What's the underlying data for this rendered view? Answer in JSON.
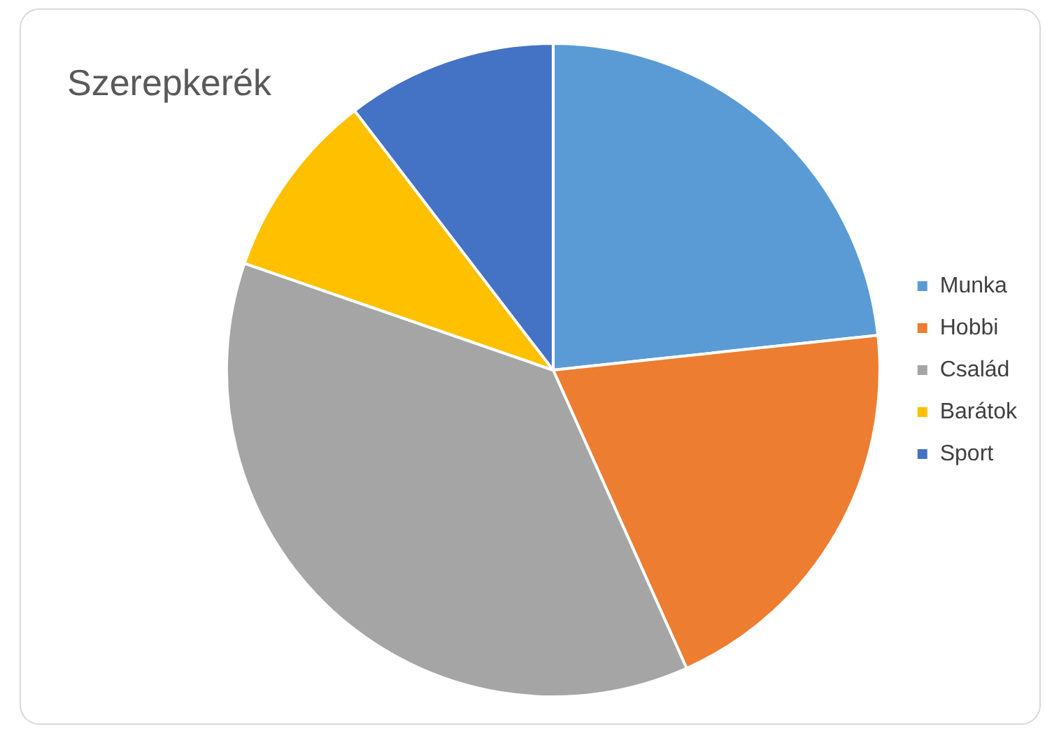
{
  "chart_data": {
    "type": "pie",
    "title": "Szerepkerék",
    "categories": [
      "Munka",
      "Hobbi",
      "Család",
      "Barátok",
      "Sport"
    ],
    "values": [
      23.3,
      20,
      37,
      9.3,
      10.4
    ],
    "colors": [
      "#5b9bd5",
      "#ed7d31",
      "#a5a5a5",
      "#ffc000",
      "#4472c4"
    ],
    "legend": "right"
  }
}
